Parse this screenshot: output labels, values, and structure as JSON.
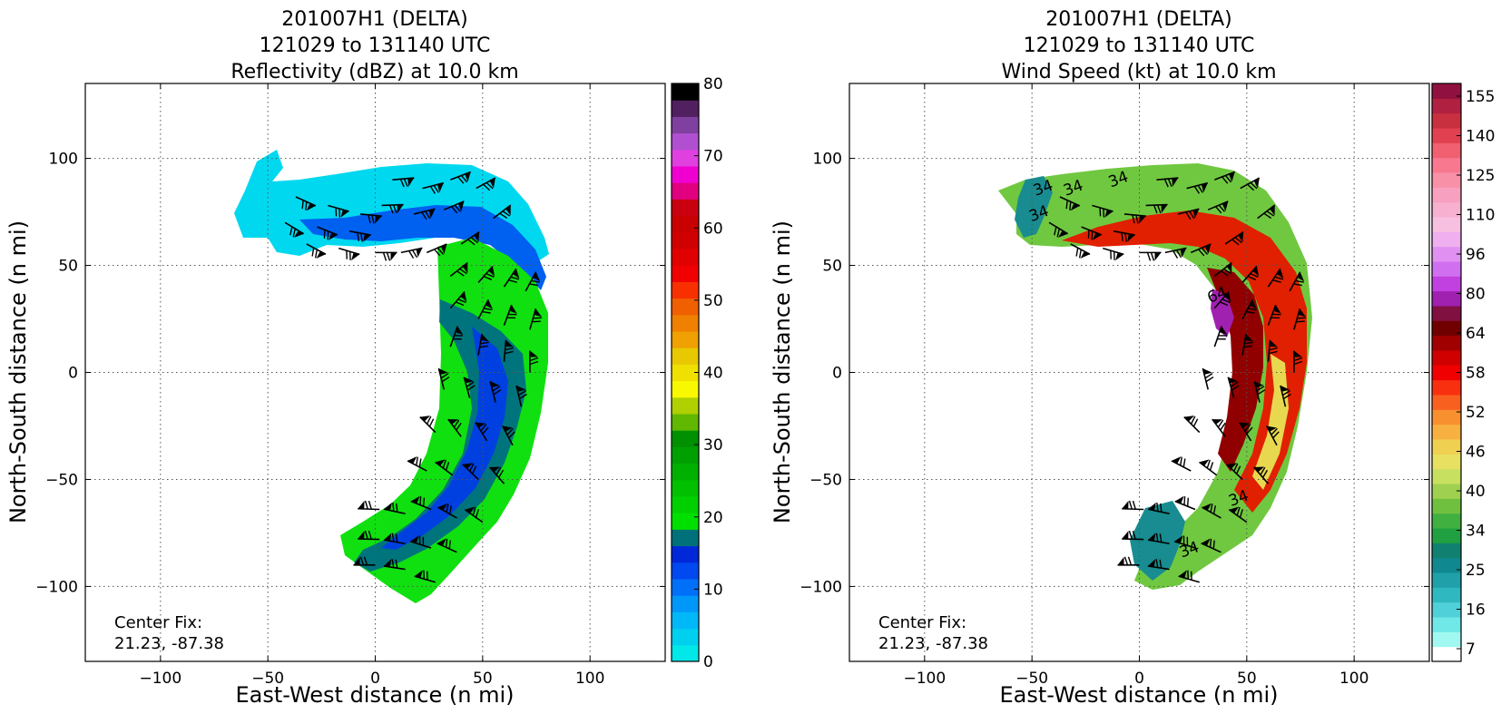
{
  "chart_data": [
    {
      "type": "heatmap",
      "title_lines": [
        "201007H1 (DELTA)",
        "121029 to 131140 UTC",
        "Reflectivity (dBZ) at 10.0 km"
      ],
      "xlabel": "East-West distance (n mi)",
      "ylabel": "North-South distance (n mi)",
      "xlim": [
        -135,
        135
      ],
      "ylim": [
        -135,
        135
      ],
      "xticks": [
        -100,
        -50,
        0,
        50,
        100
      ],
      "yticks": [
        -100,
        -50,
        0,
        50,
        100
      ],
      "grid": true,
      "annotation_lines": [
        "Center Fix:",
        "21.23, -87.38"
      ],
      "colorbar": {
        "min": 0,
        "max": 80,
        "ticks": [
          0,
          10,
          20,
          30,
          40,
          50,
          60,
          70,
          80
        ],
        "colors": [
          "#00e8e8",
          "#00d0f0",
          "#00b8f8",
          "#0098f8",
          "#0070f8",
          "#0048f0",
          "#0028d8",
          "#00707a",
          "#00e000",
          "#00d000",
          "#00c000",
          "#00b000",
          "#00a000",
          "#009000",
          "#60b800",
          "#b0d000",
          "#f8f800",
          "#f0e000",
          "#e8c800",
          "#f0a000",
          "#f08000",
          "#f06000",
          "#f83000",
          "#f00000",
          "#e00000",
          "#d00000",
          "#c80000",
          "#c80010",
          "#e00080",
          "#f000d0",
          "#e040e0",
          "#b050d0",
          "#8040a0",
          "#502060",
          "#000000"
        ]
      },
      "wind_barbs": [
        {
          "x": -37,
          "y": 82
        },
        {
          "x": -22,
          "y": 78
        },
        {
          "x": -7,
          "y": 74
        },
        {
          "x": 8,
          "y": 90
        },
        {
          "x": 22,
          "y": 86
        },
        {
          "x": 35,
          "y": 90
        },
        {
          "x": -42,
          "y": 70
        },
        {
          "x": -27,
          "y": 68
        },
        {
          "x": -12,
          "y": 66
        },
        {
          "x": 3,
          "y": 78
        },
        {
          "x": 18,
          "y": 74
        },
        {
          "x": 32,
          "y": 76
        },
        {
          "x": 47,
          "y": 86
        },
        {
          "x": -32,
          "y": 60
        },
        {
          "x": -17,
          "y": 58
        },
        {
          "x": 0,
          "y": 56
        },
        {
          "x": 12,
          "y": 56
        },
        {
          "x": 24,
          "y": 56
        },
        {
          "x": 40,
          "y": 60
        },
        {
          "x": 55,
          "y": 72
        },
        {
          "x": 35,
          "y": 45
        },
        {
          "x": 48,
          "y": 42
        },
        {
          "x": 60,
          "y": 40
        },
        {
          "x": 70,
          "y": 38
        },
        {
          "x": 35,
          "y": 30
        },
        {
          "x": 48,
          "y": 25
        },
        {
          "x": 60,
          "y": 22
        },
        {
          "x": 72,
          "y": 20
        },
        {
          "x": 35,
          "y": 12
        },
        {
          "x": 48,
          "y": 8
        },
        {
          "x": 60,
          "y": 5
        },
        {
          "x": 72,
          "y": 0
        },
        {
          "x": 32,
          "y": -8
        },
        {
          "x": 44,
          "y": -12
        },
        {
          "x": 56,
          "y": -14
        },
        {
          "x": 68,
          "y": -16
        },
        {
          "x": 28,
          "y": -28
        },
        {
          "x": 40,
          "y": -30
        },
        {
          "x": 52,
          "y": -32
        },
        {
          "x": 64,
          "y": -34
        },
        {
          "x": 24,
          "y": -46
        },
        {
          "x": 36,
          "y": -48
        },
        {
          "x": 48,
          "y": -50
        },
        {
          "x": 60,
          "y": -52
        },
        {
          "x": 2,
          "y": -64
        },
        {
          "x": 14,
          "y": -66
        },
        {
          "x": 26,
          "y": -64
        },
        {
          "x": 38,
          "y": -68
        },
        {
          "x": 50,
          "y": -70
        },
        {
          "x": 2,
          "y": -78
        },
        {
          "x": 14,
          "y": -80
        },
        {
          "x": 26,
          "y": -82
        },
        {
          "x": 38,
          "y": -84
        },
        {
          "x": 0,
          "y": -90
        },
        {
          "x": 14,
          "y": -92
        },
        {
          "x": 28,
          "y": -98
        }
      ]
    },
    {
      "type": "heatmap",
      "title_lines": [
        "201007H1 (DELTA)",
        "121029 to 131140 UTC",
        "Wind Speed (kt) at 10.0 km"
      ],
      "xlabel": "East-West distance (n mi)",
      "ylabel": "North-South distance (n mi)",
      "xlim": [
        -135,
        135
      ],
      "ylim": [
        -135,
        135
      ],
      "xticks": [
        -100,
        -50,
        0,
        50,
        100
      ],
      "yticks": [
        -100,
        -50,
        0,
        50,
        100
      ],
      "grid": true,
      "annotation_lines": [
        "Center Fix:",
        "21.23, -87.38"
      ],
      "contour_labels": [
        {
          "text": "34",
          "x": -44,
          "y": 84
        },
        {
          "text": "34",
          "x": -30,
          "y": 84
        },
        {
          "text": "34",
          "x": -9,
          "y": 88
        },
        {
          "text": "34",
          "x": -46,
          "y": 72
        },
        {
          "text": "64",
          "x": 37,
          "y": 34
        },
        {
          "text": "34",
          "x": 47,
          "y": -61
        },
        {
          "text": "34",
          "x": 24,
          "y": -85
        }
      ],
      "colorbar": {
        "tick_labels": [
          "7",
          "16",
          "25",
          "34",
          "40",
          "46",
          "52",
          "58",
          "64",
          "80",
          "96",
          "110",
          "125",
          "140",
          "155"
        ],
        "colors": [
          "#ffffff",
          "#a0f8f0",
          "#70e8e8",
          "#50d0d8",
          "#30b8c0",
          "#20a0a8",
          "#108890",
          "#108070",
          "#20a040",
          "#40b040",
          "#70c040",
          "#a0d050",
          "#c8e060",
          "#e8e060",
          "#f0d050",
          "#f8b040",
          "#f89030",
          "#f86020",
          "#f83010",
          "#f00000",
          "#d00000",
          "#a00000",
          "#700000",
          "#801040",
          "#a020b0",
          "#c040e0",
          "#d070f0",
          "#e090f0",
          "#f0b0f0",
          "#f8c0e0",
          "#f8b0d0",
          "#f8a0c0",
          "#f890a8",
          "#f87890",
          "#f06070",
          "#e04050",
          "#c83040",
          "#b02040",
          "#901040"
        ]
      },
      "wind_barbs": [
        {
          "x": -37,
          "y": 82
        },
        {
          "x": -22,
          "y": 78
        },
        {
          "x": -7,
          "y": 74
        },
        {
          "x": 8,
          "y": 90
        },
        {
          "x": 22,
          "y": 86
        },
        {
          "x": 35,
          "y": 90
        },
        {
          "x": -42,
          "y": 70
        },
        {
          "x": -27,
          "y": 68
        },
        {
          "x": -12,
          "y": 66
        },
        {
          "x": 3,
          "y": 78
        },
        {
          "x": 18,
          "y": 74
        },
        {
          "x": 32,
          "y": 76
        },
        {
          "x": 47,
          "y": 86
        },
        {
          "x": -32,
          "y": 60
        },
        {
          "x": -17,
          "y": 58
        },
        {
          "x": 0,
          "y": 56
        },
        {
          "x": 12,
          "y": 56
        },
        {
          "x": 24,
          "y": 56
        },
        {
          "x": 40,
          "y": 60
        },
        {
          "x": 55,
          "y": 72
        },
        {
          "x": 35,
          "y": 45
        },
        {
          "x": 48,
          "y": 42
        },
        {
          "x": 60,
          "y": 40
        },
        {
          "x": 70,
          "y": 38
        },
        {
          "x": 35,
          "y": 30
        },
        {
          "x": 48,
          "y": 25
        },
        {
          "x": 60,
          "y": 22
        },
        {
          "x": 72,
          "y": 20
        },
        {
          "x": 35,
          "y": 12
        },
        {
          "x": 48,
          "y": 8
        },
        {
          "x": 60,
          "y": 5
        },
        {
          "x": 72,
          "y": 0
        },
        {
          "x": 32,
          "y": -8
        },
        {
          "x": 44,
          "y": -12
        },
        {
          "x": 56,
          "y": -14
        },
        {
          "x": 68,
          "y": -16
        },
        {
          "x": 28,
          "y": -28
        },
        {
          "x": 40,
          "y": -30
        },
        {
          "x": 52,
          "y": -32
        },
        {
          "x": 64,
          "y": -34
        },
        {
          "x": 24,
          "y": -46
        },
        {
          "x": 36,
          "y": -48
        },
        {
          "x": 48,
          "y": -50
        },
        {
          "x": 60,
          "y": -52
        },
        {
          "x": 2,
          "y": -64
        },
        {
          "x": 14,
          "y": -66
        },
        {
          "x": 26,
          "y": -64
        },
        {
          "x": 38,
          "y": -68
        },
        {
          "x": 50,
          "y": -70
        },
        {
          "x": 2,
          "y": -78
        },
        {
          "x": 14,
          "y": -80
        },
        {
          "x": 26,
          "y": -82
        },
        {
          "x": 38,
          "y": -84
        },
        {
          "x": 0,
          "y": -90
        },
        {
          "x": 14,
          "y": -92
        },
        {
          "x": 28,
          "y": -98
        }
      ]
    }
  ]
}
